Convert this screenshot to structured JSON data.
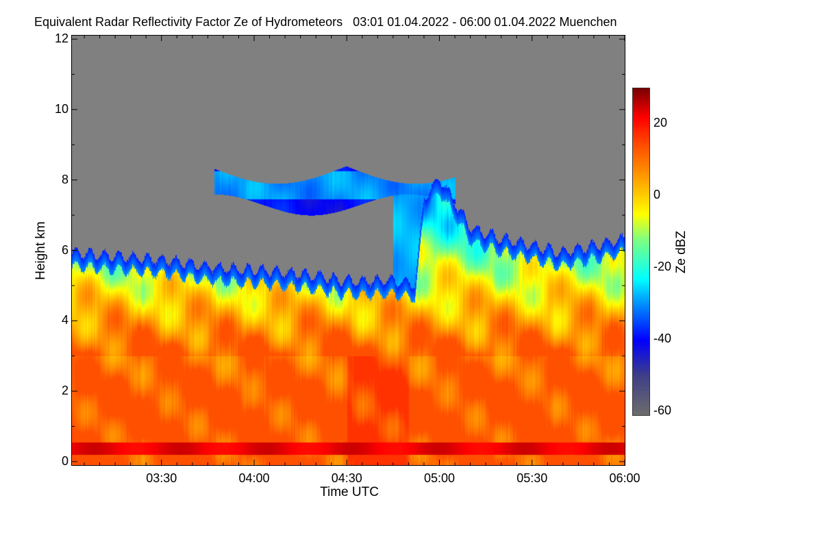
{
  "chart_data": {
    "type": "heatmap",
    "title": "Equivalent Radar Reflectivity Factor Ze of Hydrometeors   03:01 01.04.2022 - 06:00 01.04.2022 Muenchen",
    "xlabel": "Time UTC",
    "ylabel": "Height km",
    "xlim_minutes_after_0300": [
      1,
      180
    ],
    "ylim": [
      -0.1,
      12.1
    ],
    "x_ticks": [
      "03:30",
      "04:00",
      "04:30",
      "05:00",
      "05:30",
      "06:00"
    ],
    "x_tick_minutes": [
      30,
      60,
      90,
      120,
      150,
      180
    ],
    "y_ticks": [
      "0",
      "2",
      "4",
      "6",
      "8",
      "10",
      "12"
    ],
    "y_tick_values": [
      0,
      2,
      4,
      6,
      8,
      10,
      12
    ],
    "colorbar": {
      "label": "Ze dBZ",
      "range": [
        -61,
        30
      ],
      "ticks": [
        "20",
        "0",
        "-20",
        "-40",
        "-60"
      ],
      "tick_values": [
        20,
        0,
        -20,
        -40,
        -60
      ],
      "colormap": [
        [
          -61,
          "#6e6e6e"
        ],
        [
          -50,
          "#404088"
        ],
        [
          -40,
          "#0000ff"
        ],
        [
          -30,
          "#0090ff"
        ],
        [
          -23,
          "#00ffff"
        ],
        [
          -12,
          "#80ff80"
        ],
        [
          -5,
          "#ffff00"
        ],
        [
          5,
          "#ffa000"
        ],
        [
          14,
          "#ff5000"
        ],
        [
          22,
          "#ff0000"
        ],
        [
          30,
          "#7a0000"
        ]
      ]
    },
    "no_data_color": "#808080",
    "echo_top_km": {
      "minutes": [
        1,
        15,
        30,
        45,
        60,
        75,
        90,
        105,
        112,
        115,
        120,
        130,
        140,
        150,
        160,
        170,
        180
      ],
      "values": [
        5.9,
        5.8,
        5.7,
        5.5,
        5.4,
        5.3,
        5.1,
        5.1,
        5.0,
        7.5,
        8.0,
        6.6,
        6.3,
        6.1,
        5.9,
        6.1,
        6.3
      ]
    },
    "upper_layer_km": {
      "start_minute": 47,
      "end_minute": 125,
      "base": 7.3,
      "top": 8.4
    },
    "bright_band_km": 0.35
  }
}
